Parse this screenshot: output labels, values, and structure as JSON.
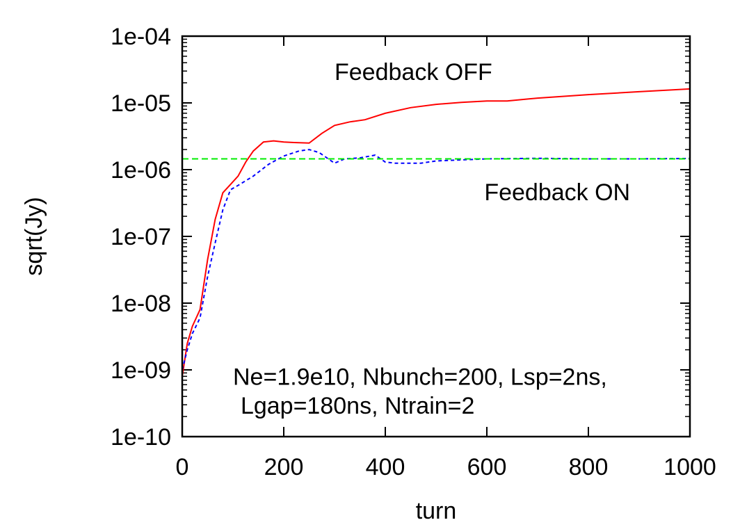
{
  "chart_data": {
    "type": "line",
    "title": "",
    "xlabel": "turn",
    "ylabel": "sqrt(Jy)",
    "xlim": [
      0,
      1000
    ],
    "ylim": [
      1e-10,
      0.0001
    ],
    "yscale": "log",
    "grid": false,
    "x_ticks": [
      0,
      200,
      400,
      600,
      800,
      1000
    ],
    "x_tick_labels": [
      "0",
      "200",
      "400",
      "600",
      "800",
      "1000"
    ],
    "y_ticks": [
      1e-10,
      1e-09,
      1e-08,
      1e-07,
      1e-06,
      1e-05,
      0.0001
    ],
    "y_tick_labels": [
      "1e-10",
      "1e-09",
      "1e-08",
      "1e-07",
      "1e-06",
      "1e-05",
      "1e-04"
    ],
    "series": [
      {
        "color": "#ff0000",
        "style": "solid",
        "x": [
          0,
          10,
          20,
          35,
          50,
          65,
          80,
          95,
          110,
          125,
          140,
          160,
          180,
          200,
          220,
          250,
          275,
          300,
          330,
          360,
          400,
          450,
          500,
          550,
          600,
          640,
          700,
          800,
          900,
          1000
        ],
        "y": [
          8e-10,
          2.5e-09,
          4.5e-09,
          8e-09,
          4.5e-08,
          1.8e-07,
          4.5e-07,
          6e-07,
          8e-07,
          1.3e-06,
          1.9e-06,
          2.6e-06,
          2.7e-06,
          2.6e-06,
          2.55e-06,
          2.5e-06,
          3.5e-06,
          4.6e-06,
          5.2e-06,
          5.6e-06,
          7e-06,
          8.5e-06,
          9.5e-06,
          1.02e-05,
          1.07e-05,
          1.07e-05,
          1.18e-05,
          1.33e-05,
          1.47e-05,
          1.62e-05
        ]
      },
      {
        "color": "#0000ff",
        "style": "dashed",
        "x": [
          0,
          10,
          20,
          35,
          50,
          65,
          80,
          95,
          110,
          140,
          170,
          200,
          230,
          250,
          270,
          300,
          320,
          350,
          380,
          400,
          420,
          470,
          500,
          550,
          600,
          700,
          800,
          900,
          1000
        ],
        "y": [
          1e-09,
          2e-09,
          3.5e-09,
          6e-09,
          2.5e-08,
          8e-08,
          2.5e-07,
          5e-07,
          5.8e-07,
          8e-07,
          1.2e-06,
          1.6e-06,
          1.9e-06,
          2e-06,
          1.8e-06,
          1.25e-06,
          1.45e-06,
          1.5e-06,
          1.65e-06,
          1.3e-06,
          1.25e-06,
          1.25e-06,
          1.35e-06,
          1.4e-06,
          1.45e-06,
          1.48e-06,
          1.45e-06,
          1.45e-06,
          1.47e-06
        ]
      },
      {
        "color": "#00ee00",
        "style": "dashed",
        "x": [
          0,
          1000
        ],
        "y": [
          1.45e-06,
          1.45e-06
        ]
      }
    ],
    "annotations": [
      {
        "text": "Feedback OFF",
        "x": 300,
        "y": 2.2e-05
      },
      {
        "text": "Feedback ON",
        "x": 595,
        "y": 3.5e-07
      },
      {
        "text": "Ne=1.9e10, Nbunch=200, Lsp=2ns,",
        "x": 100,
        "y": 6e-10
      },
      {
        "text": "Lgap=180ns, Ntrain=2",
        "x": 115,
        "y": 2.2e-10
      }
    ]
  }
}
